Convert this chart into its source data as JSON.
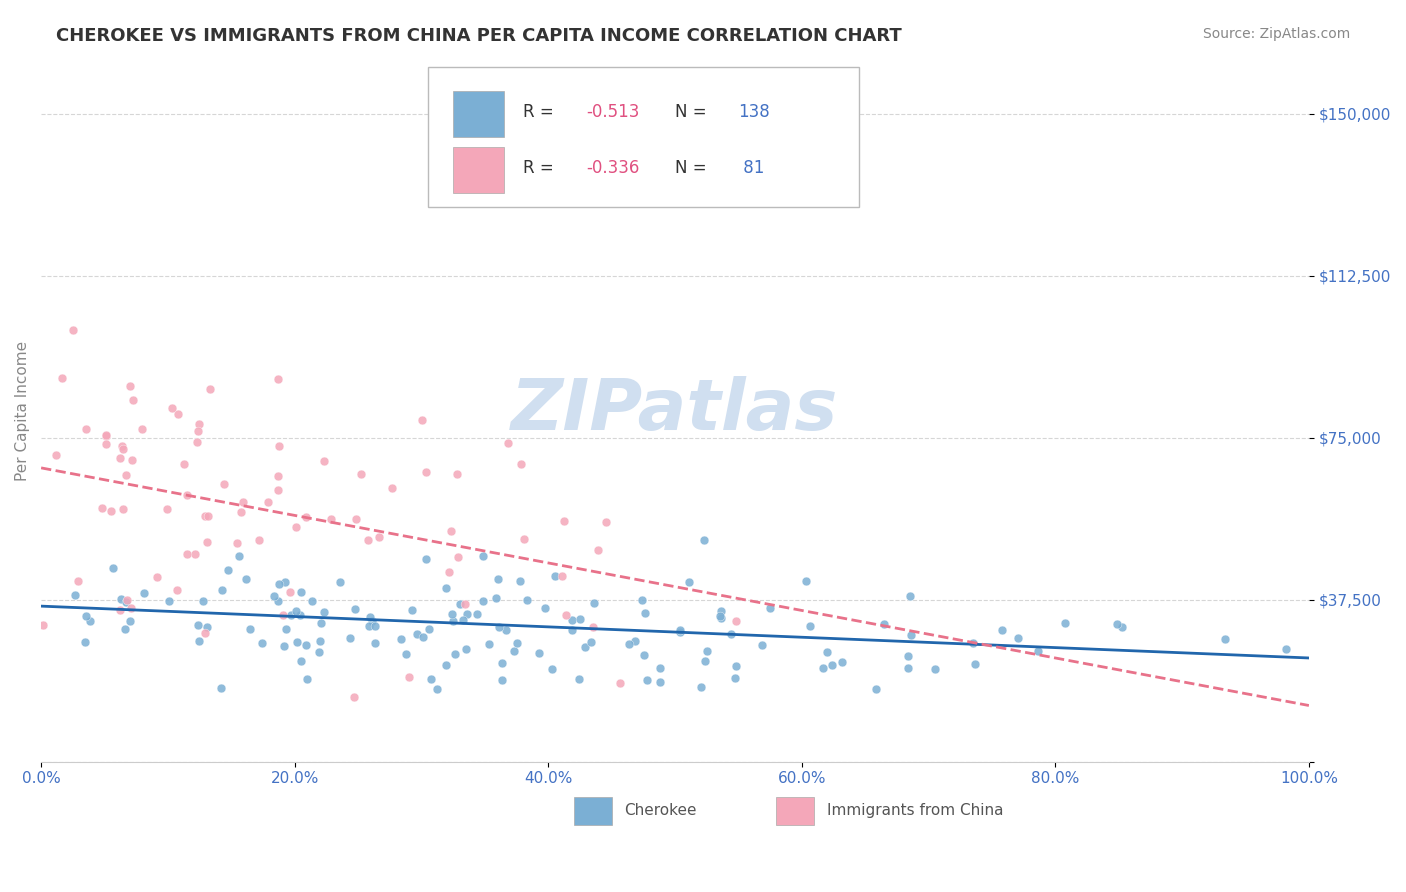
{
  "title": "CHEROKEE VS IMMIGRANTS FROM CHINA PER CAPITA INCOME CORRELATION CHART",
  "source": "Source: ZipAtlas.com",
  "xlabel": "",
  "ylabel": "Per Capita Income",
  "xlim": [
    0,
    100
  ],
  "ylim": [
    0,
    162500
  ],
  "yticks": [
    0,
    37500,
    75000,
    112500,
    150000
  ],
  "ytick_labels": [
    "",
    "$37,500",
    "$75,000",
    "$112,500",
    "$150,000"
  ],
  "xtick_labels": [
    "0.0%",
    "20.0%",
    "40.0%",
    "60.0%",
    "80.0%",
    "100.0%"
  ],
  "xticks": [
    0,
    20,
    40,
    60,
    80,
    100
  ],
  "legend_entries": [
    {
      "label": "R =  -0.513   N = 138",
      "color": "#aec6e8"
    },
    {
      "label": "R =  -0.336   N =  81",
      "color": "#f4a7b9"
    }
  ],
  "cherokee_color": "#7bafd4",
  "china_color": "#f4a7b9",
  "cherokee_line_color": "#2166ac",
  "china_line_color": "#e8728a",
  "background_color": "#ffffff",
  "grid_color": "#cccccc",
  "title_color": "#333333",
  "axis_label_color": "#4472c4",
  "ytick_color": "#4472c4",
  "source_color": "#888888",
  "watermark_color": "#d0dff0",
  "legend_r_color": "#e05080",
  "legend_n_color": "#4472c4",
  "cherokee_R": -0.513,
  "cherokee_N": 138,
  "china_R": -0.336,
  "china_N": 81
}
